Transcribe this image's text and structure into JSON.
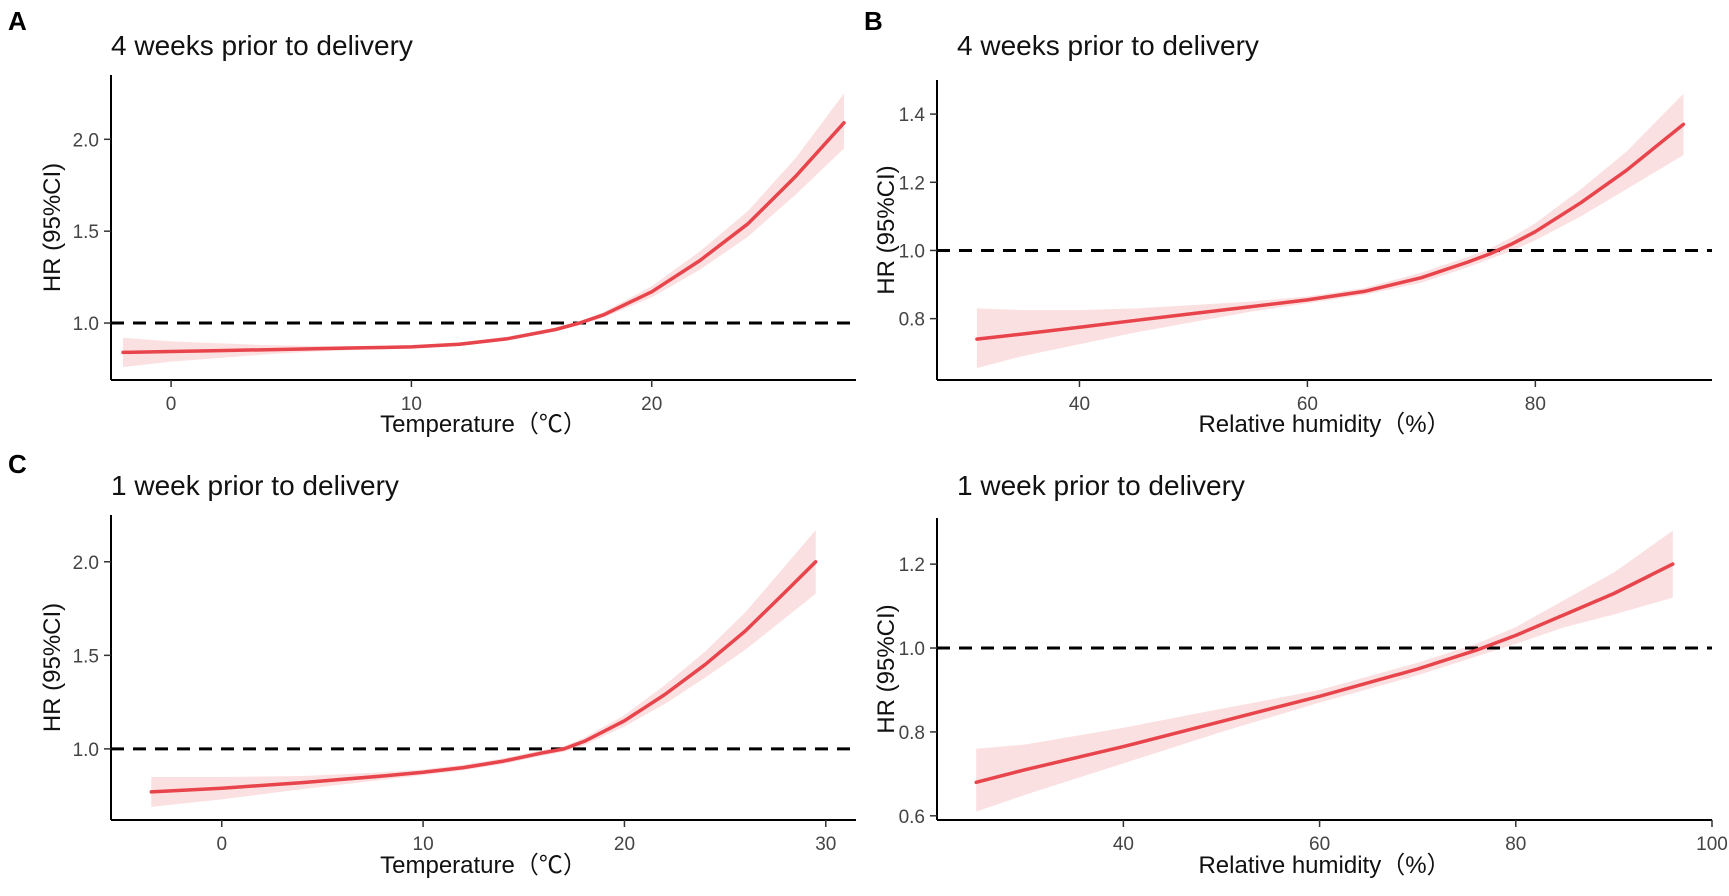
{
  "colors": {
    "curve": "#e8444c",
    "ci": "#f7c6c9",
    "reference": "#000000",
    "axis": "#000000"
  },
  "chart_data": [
    {
      "panel_label": "A",
      "type": "line",
      "title": "4 weeks prior to delivery",
      "xlabel": "Temperature（℃）",
      "ylabel": "HR (95%CI)",
      "xlim": [
        -2.5,
        28.5
      ],
      "ylim": [
        0.69,
        2.35
      ],
      "xticks": [
        0,
        10,
        20
      ],
      "xtick_labels": [
        "0",
        "10",
        "20"
      ],
      "yticks": [
        1.0,
        1.5,
        2.0
      ],
      "ytick_labels": [
        "1.0",
        "1.5",
        "2.0"
      ],
      "reference_line": 1.0,
      "grid": false,
      "series": [
        {
          "name": "HR",
          "x": [
            -2.0,
            0,
            2,
            4,
            6,
            8,
            10,
            12,
            14,
            16,
            17,
            18,
            20,
            22,
            24,
            26,
            28
          ],
          "y": [
            0.84,
            0.845,
            0.85,
            0.855,
            0.86,
            0.865,
            0.87,
            0.885,
            0.915,
            0.965,
            1.0,
            1.045,
            1.17,
            1.34,
            1.54,
            1.8,
            2.09
          ],
          "lower": [
            0.76,
            0.79,
            0.81,
            0.83,
            0.845,
            0.855,
            0.86,
            0.875,
            0.905,
            0.955,
            0.99,
            1.03,
            1.14,
            1.29,
            1.47,
            1.7,
            1.95
          ],
          "upper": [
            0.92,
            0.9,
            0.89,
            0.88,
            0.875,
            0.875,
            0.88,
            0.895,
            0.925,
            0.975,
            1.01,
            1.06,
            1.2,
            1.39,
            1.61,
            1.9,
            2.25
          ]
        }
      ]
    },
    {
      "panel_label": "B",
      "type": "line",
      "title": "4 weeks prior to delivery",
      "xlabel": "Relative humidity（%）",
      "ylabel": "HR (95%CI)",
      "xlim": [
        27.5,
        95.5
      ],
      "ylim": [
        0.62,
        1.5
      ],
      "xticks": [
        40,
        60,
        80
      ],
      "xtick_labels": [
        "40",
        "60",
        "80"
      ],
      "yticks": [
        0.8,
        1.0,
        1.2,
        1.4
      ],
      "ytick_labels": [
        "0.8",
        "1.0",
        "1.2",
        "1.4"
      ],
      "reference_line": 1.0,
      "grid": false,
      "series": [
        {
          "name": "HR",
          "x": [
            31,
            35,
            40,
            45,
            50,
            55,
            60,
            65,
            70,
            74,
            76,
            78,
            80,
            84,
            88,
            93
          ],
          "y": [
            0.74,
            0.755,
            0.775,
            0.795,
            0.815,
            0.835,
            0.855,
            0.88,
            0.92,
            0.965,
            0.99,
            1.02,
            1.055,
            1.14,
            1.235,
            1.37
          ],
          "lower": [
            0.655,
            0.69,
            0.725,
            0.76,
            0.79,
            0.82,
            0.845,
            0.87,
            0.905,
            0.95,
            0.975,
            1.0,
            1.03,
            1.1,
            1.18,
            1.28
          ],
          "upper": [
            0.83,
            0.825,
            0.825,
            0.83,
            0.84,
            0.85,
            0.865,
            0.89,
            0.935,
            0.98,
            1.005,
            1.04,
            1.08,
            1.18,
            1.29,
            1.46
          ]
        }
      ]
    },
    {
      "panel_label": "C",
      "type": "line",
      "title": "1 week prior to delivery",
      "xlabel": "Temperature（℃）",
      "ylabel": "HR (95%CI)",
      "xlim": [
        -5.5,
        31.5
      ],
      "ylim": [
        0.62,
        2.25
      ],
      "xticks": [
        0,
        10,
        20,
        30
      ],
      "xtick_labels": [
        "0",
        "10",
        "20",
        "30"
      ],
      "yticks": [
        1.0,
        1.5,
        2.0
      ],
      "ytick_labels": [
        "1.0",
        "1.5",
        "2.0"
      ],
      "reference_line": 1.0,
      "grid": false,
      "series": [
        {
          "name": "HR",
          "x": [
            -3.5,
            0,
            4,
            8,
            10,
            12,
            14,
            16,
            17,
            18,
            20,
            22,
            24,
            26,
            28,
            29.5
          ],
          "y": [
            0.77,
            0.79,
            0.82,
            0.855,
            0.875,
            0.9,
            0.935,
            0.98,
            1.0,
            1.04,
            1.15,
            1.29,
            1.45,
            1.63,
            1.84,
            2.0
          ],
          "lower": [
            0.69,
            0.73,
            0.785,
            0.835,
            0.86,
            0.885,
            0.92,
            0.965,
            0.985,
            1.02,
            1.12,
            1.24,
            1.38,
            1.53,
            1.7,
            1.83
          ],
          "upper": [
            0.85,
            0.85,
            0.855,
            0.875,
            0.89,
            0.915,
            0.95,
            0.995,
            1.015,
            1.06,
            1.18,
            1.34,
            1.52,
            1.73,
            1.98,
            2.17
          ]
        }
      ]
    },
    {
      "panel_label": "",
      "type": "line",
      "title": "1 week prior to delivery",
      "xlabel": "Relative humidity（%）",
      "ylabel": "HR (95%CI)",
      "xlim": [
        21,
        100
      ],
      "ylim": [
        0.59,
        1.31
      ],
      "xticks": [
        40,
        60,
        80,
        100
      ],
      "xtick_labels": [
        "40",
        "60",
        "80",
        "100"
      ],
      "yticks": [
        0.6,
        0.8,
        1.0,
        1.2
      ],
      "ytick_labels": [
        "0.6",
        "0.8",
        "1.0",
        "1.2"
      ],
      "reference_line": 1.0,
      "grid": false,
      "series": [
        {
          "name": "HR",
          "x": [
            25,
            30,
            40,
            50,
            60,
            70,
            76,
            80,
            85,
            90,
            96
          ],
          "y": [
            0.68,
            0.71,
            0.765,
            0.825,
            0.885,
            0.95,
            0.995,
            1.03,
            1.08,
            1.13,
            1.2
          ],
          "lower": [
            0.61,
            0.65,
            0.725,
            0.8,
            0.87,
            0.935,
            0.98,
            1.01,
            1.05,
            1.08,
            1.12
          ],
          "upper": [
            0.76,
            0.77,
            0.81,
            0.855,
            0.9,
            0.965,
            1.01,
            1.05,
            1.115,
            1.18,
            1.28
          ]
        }
      ]
    }
  ]
}
